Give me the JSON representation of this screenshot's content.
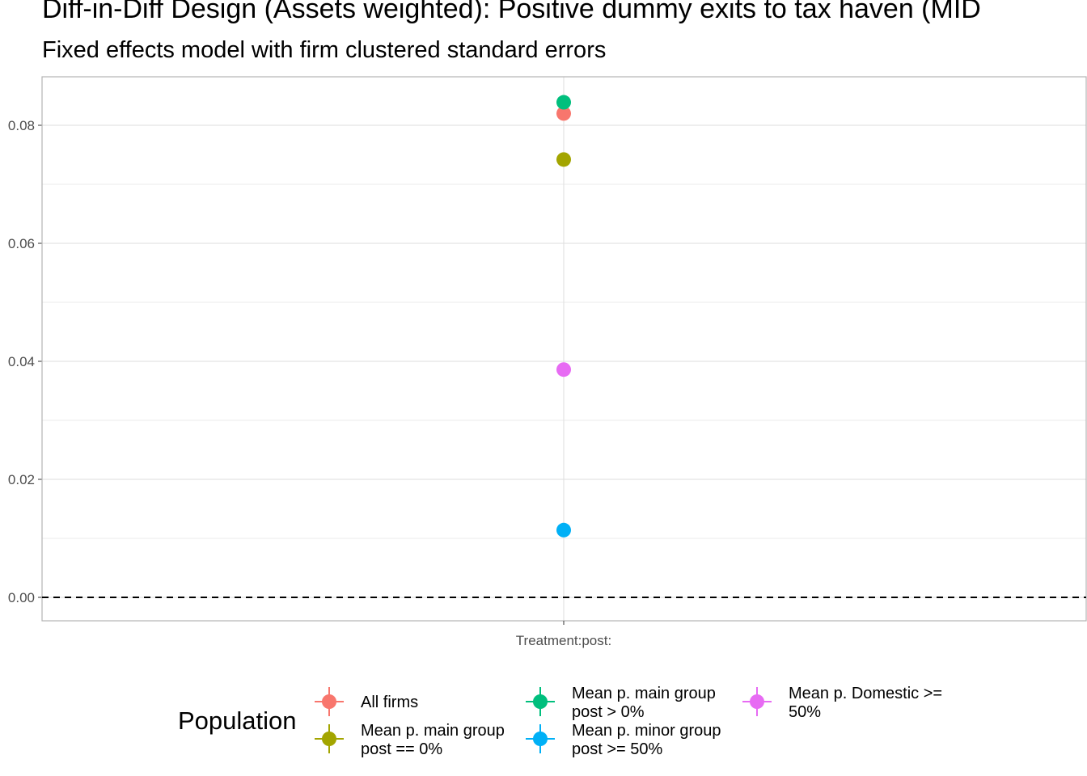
{
  "title": "Diff-in-Diff Design (Assets weighted): Positive dummy exits to tax haven (MID",
  "subtitle": "Fixed effects model with firm clustered standard errors",
  "chart_data": {
    "type": "scatter",
    "categories": [
      "Treatment:post:"
    ],
    "yticks": [
      "0.00",
      "0.02",
      "0.04",
      "0.06",
      "0.08"
    ],
    "ylim": [
      -0.004,
      0.088
    ],
    "reference_line": 0,
    "grid": true,
    "legend_title": "Population",
    "legend_position": "bottom",
    "series": [
      {
        "name": "All firms",
        "lines": [
          "All firms"
        ],
        "value": 0.082,
        "color": "#F8766D"
      },
      {
        "name": "Mean p. main group post == 0%",
        "lines": [
          "Mean p. main group",
          "post == 0%"
        ],
        "value": 0.0742,
        "color": "#A3A500"
      },
      {
        "name": "Mean p. main group post > 0%",
        "lines": [
          "Mean p. main group",
          "post > 0%"
        ],
        "value": 0.0839,
        "color": "#00BF7D"
      },
      {
        "name": "Mean p. minor group post >= 50%",
        "lines": [
          "Mean p. minor group",
          "post >= 50%"
        ],
        "value": 0.0114,
        "color": "#00B0F6"
      },
      {
        "name": "Mean p. Domestic >= 50%",
        "lines": [
          "Mean p. Domestic >=",
          "50%"
        ],
        "value": 0.0386,
        "color": "#E76BF3"
      }
    ]
  }
}
